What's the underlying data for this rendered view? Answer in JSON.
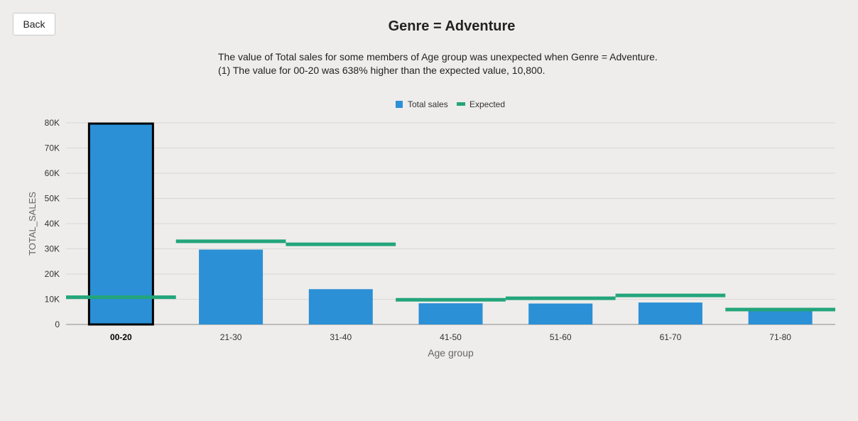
{
  "back_label": "Back",
  "title": "Genre = Adventure",
  "description": [
    "The value of Total sales for some members of Age group was unexpected when Genre = Adventure.",
    "(1) The value for 00-20 was 638% higher than the expected value, 10,800."
  ],
  "chart_data": {
    "type": "bar",
    "xlabel": "Age group",
    "ylabel": "TOTAL_SALES",
    "categories": [
      "00-20",
      "21-30",
      "31-40",
      "41-50",
      "51-60",
      "61-70",
      "71-80"
    ],
    "highlighted_category": "00-20",
    "series": [
      {
        "name": "Total sales",
        "kind": "bar",
        "color": "#2b90d6",
        "values": [
          79700,
          29700,
          14000,
          8400,
          8300,
          8700,
          5800
        ]
      },
      {
        "name": "Expected",
        "kind": "reference-line",
        "color": "#23a57b",
        "values": [
          10800,
          33000,
          31800,
          9800,
          10400,
          11500,
          5900
        ]
      }
    ],
    "ylim": [
      0,
      80000
    ],
    "yticks": [
      0,
      10000,
      20000,
      30000,
      40000,
      50000,
      60000,
      70000,
      80000
    ],
    "ytick_labels": [
      "0",
      "10K",
      "20K",
      "30K",
      "40K",
      "50K",
      "60K",
      "70K",
      "80K"
    ],
    "grid": true,
    "legend_position": "top-center"
  }
}
